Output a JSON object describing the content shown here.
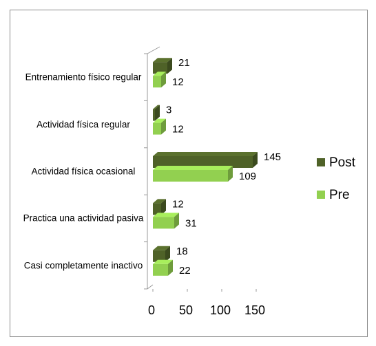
{
  "chart_data": {
    "type": "bar3d_horizontal",
    "categories": [
      "Entrenamiento físico regular",
      "Actividad  física regular",
      "Actividad física ocasional",
      "Practica una actividad pasiva",
      "Casi completamente inactivo"
    ],
    "series": [
      {
        "name": "Post",
        "color": "#4f6228",
        "values": [
          21,
          3,
          145,
          12,
          18
        ]
      },
      {
        "name": "Pre",
        "color": "#92d050",
        "values": [
          12,
          12,
          109,
          31,
          22
        ]
      }
    ],
    "xlim": [
      0,
      150
    ],
    "xticks": [
      0,
      50,
      100,
      150
    ],
    "legend": "right"
  }
}
